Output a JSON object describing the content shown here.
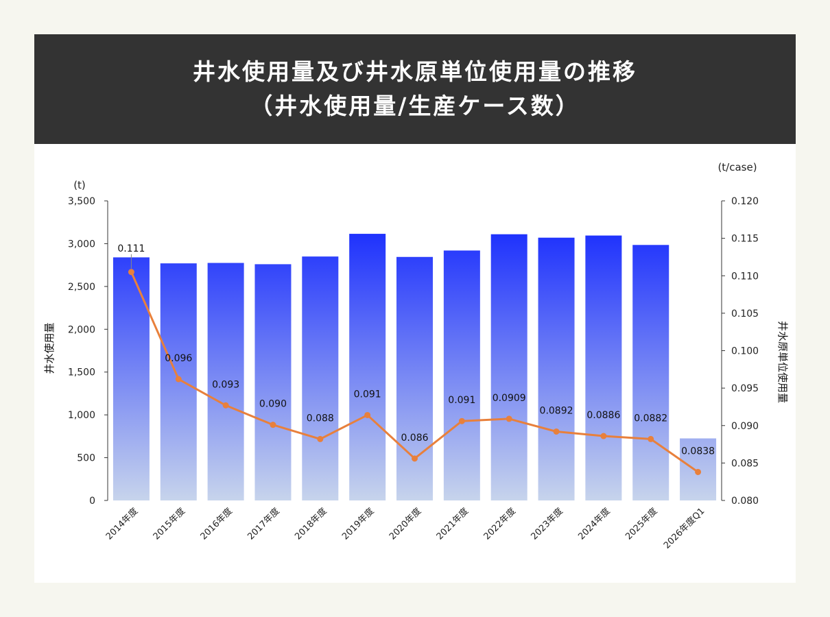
{
  "header": {
    "title_line1": "井水使用量及び井水原単位使用量の推移",
    "title_line2": "（井水使用量/生産ケース数）"
  },
  "colors": {
    "page_background": "#f6f6ef",
    "header_background": "#333333",
    "bar_top": "#0a1eff",
    "bar_bottom": "#c7d4ec",
    "line": "#e8803c"
  },
  "chart_data": {
    "type": "bar+line",
    "categories": [
      "2014年度",
      "2015年度",
      "2016年度",
      "2017年度",
      "2018年度",
      "2019年度",
      "2020年度",
      "2021年度",
      "2022年度",
      "2023年度",
      "2024年度",
      "2025年度",
      "2026年度Q1"
    ],
    "series": [
      {
        "type": "bar",
        "axis": "left",
        "values": [
          2840,
          2770,
          2775,
          2760,
          2850,
          3115,
          2845,
          2920,
          3110,
          3070,
          3095,
          2985,
          725
        ]
      },
      {
        "type": "line",
        "axis": "right",
        "values": [
          0.1105,
          0.0962,
          0.0927,
          0.0901,
          0.0882,
          0.0914,
          0.0856,
          0.0906,
          0.0909,
          0.0892,
          0.0886,
          0.0882,
          0.0838
        ],
        "labels": [
          "0.111",
          "0.096",
          "0.093",
          "0.090",
          "0.088",
          "0.091",
          "0.086",
          "0.091",
          "0.0909",
          "0.0892",
          "0.0886",
          "0.0882",
          "0.0838"
        ]
      }
    ],
    "y_left": {
      "label": "井水使用量",
      "unit": "(t)",
      "range": [
        0,
        3500
      ],
      "ticks": [
        "0",
        "500",
        "1,000",
        "1,500",
        "2,000",
        "2,500",
        "3,000",
        "3,500"
      ]
    },
    "y_right": {
      "label": "井水原単位使用量",
      "unit": "(t/case)",
      "range": [
        0.08,
        0.12
      ],
      "ticks": [
        "0.080",
        "0.085",
        "0.090",
        "0.095",
        "0.100",
        "0.105",
        "0.110",
        "0.115",
        "0.120"
      ]
    },
    "legend": "none",
    "grid": false
  }
}
